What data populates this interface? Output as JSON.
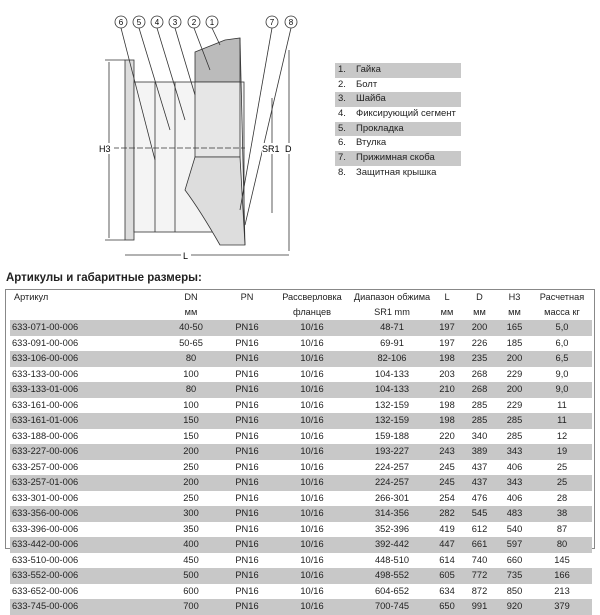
{
  "drawing": {
    "callouts": [
      "6",
      "5",
      "4",
      "3",
      "2",
      "1",
      "7",
      "8"
    ],
    "dims": {
      "h3": "H3",
      "sr1": "SR1",
      "d": "D",
      "l": "L"
    }
  },
  "legend": [
    {
      "n": "1.",
      "t": "Гайка"
    },
    {
      "n": "2.",
      "t": "Болт"
    },
    {
      "n": "3.",
      "t": "Шайба"
    },
    {
      "n": "4.",
      "t": "Фиксирующий сегмент"
    },
    {
      "n": "5.",
      "t": "Прокладка"
    },
    {
      "n": "6.",
      "t": "Втулка"
    },
    {
      "n": "7.",
      "t": "Прижимная скоба"
    },
    {
      "n": "8.",
      "t": "Защитная крышка"
    }
  ],
  "title": "Артикулы и габаритные размеры:",
  "table": {
    "header1": [
      "Артикул",
      "DN",
      "PN",
      "Рассверловка",
      "Диапазон обжима",
      "L",
      "D",
      "H3",
      "Расчетная"
    ],
    "header2": [
      "",
      "мм",
      "",
      "фланцев",
      "SR1  mm",
      "мм",
      "мм",
      "мм",
      "масса кг"
    ],
    "rows": [
      [
        "633-071-00-006",
        "40-50",
        "PN16",
        "10/16",
        "48-71",
        "197",
        "200",
        "165",
        "5,0"
      ],
      [
        "633-091-00-006",
        "50-65",
        "PN16",
        "10/16",
        "69-91",
        "197",
        "226",
        "185",
        "6,0"
      ],
      [
        "633-106-00-006",
        "80",
        "PN16",
        "10/16",
        "82-106",
        "198",
        "235",
        "200",
        "6,5"
      ],
      [
        "633-133-00-006",
        "100",
        "PN16",
        "10/16",
        "104-133",
        "203",
        "268",
        "229",
        "9,0"
      ],
      [
        "633-133-01-006",
        "80",
        "PN16",
        "10/16",
        "104-133",
        "210",
        "268",
        "200",
        "9,0"
      ],
      [
        "633-161-00-006",
        "100",
        "PN16",
        "10/16",
        "132-159",
        "198",
        "285",
        "229",
        "11"
      ],
      [
        "633-161-01-006",
        "150",
        "PN16",
        "10/16",
        "132-159",
        "198",
        "285",
        "285",
        "11"
      ],
      [
        "633-188-00-006",
        "150",
        "PN16",
        "10/16",
        "159-188",
        "220",
        "340",
        "285",
        "12"
      ],
      [
        "633-227-00-006",
        "200",
        "PN16",
        "10/16",
        "193-227",
        "243",
        "389",
        "343",
        "19"
      ],
      [
        "633-257-00-006",
        "250",
        "PN16",
        "10/16",
        "224-257",
        "245",
        "437",
        "406",
        "25"
      ],
      [
        "633-257-01-006",
        "200",
        "PN16",
        "10/16",
        "224-257",
        "245",
        "437",
        "343",
        "25"
      ],
      [
        "633-301-00-006",
        "250",
        "PN16",
        "10/16",
        "266-301",
        "254",
        "476",
        "406",
        "28"
      ],
      [
        "633-356-00-006",
        "300",
        "PN16",
        "10/16",
        "314-356",
        "282",
        "545",
        "483",
        "38"
      ],
      [
        "633-396-00-006",
        "350",
        "PN16",
        "10/16",
        "352-396",
        "419",
        "612",
        "540",
        "87"
      ],
      [
        "633-442-00-006",
        "400",
        "PN16",
        "10/16",
        "392-442",
        "447",
        "661",
        "597",
        "80"
      ],
      [
        "633-510-00-006",
        "450",
        "PN16",
        "10/16",
        "448-510",
        "614",
        "740",
        "660",
        "145"
      ],
      [
        "633-552-00-006",
        "500",
        "PN16",
        "10/16",
        "498-552",
        "605",
        "772",
        "735",
        "166"
      ],
      [
        "633-652-00-006",
        "600",
        "PN16",
        "10/16",
        "604-652",
        "634",
        "872",
        "850",
        "213"
      ],
      [
        "633-745-00-006",
        "700",
        "PN16",
        "10/16",
        "700-745",
        "650",
        "991",
        "920",
        "379"
      ]
    ]
  }
}
